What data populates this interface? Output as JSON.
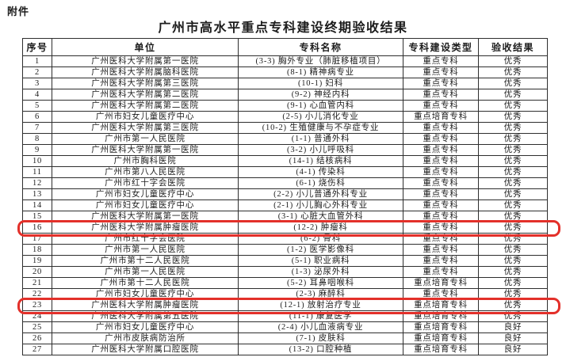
{
  "page": {
    "attachment_label": "附件",
    "title": "广州市高水平重点专科建设终期验收结果"
  },
  "table": {
    "headers": [
      "序号",
      "单位",
      "专科名称",
      "专科建设类型",
      "验收结果"
    ],
    "rows": [
      {
        "no": "1",
        "unit": "广州医科大学附属第一医院",
        "specialty": "(3-3) 胸外专业（肺脏移植项目）",
        "type": "重点专科",
        "result": "优秀",
        "highlighted": false
      },
      {
        "no": "2",
        "unit": "广州医科大学附属脑科医院",
        "specialty": "(8-1) 精神病专业",
        "type": "重点专科",
        "result": "优秀",
        "highlighted": false
      },
      {
        "no": "3",
        "unit": "广州医科大学附属第三医院",
        "specialty": "(10-1) 妇科",
        "type": "重点专科",
        "result": "优秀",
        "highlighted": false
      },
      {
        "no": "4",
        "unit": "广州医科大学附属第二医院",
        "specialty": "(9-2) 神经内科",
        "type": "重点专科",
        "result": "优秀",
        "highlighted": false
      },
      {
        "no": "5",
        "unit": "广州医科大学附属第二医院",
        "specialty": "(9-1) 心血管内科",
        "type": "重点专科",
        "result": "优秀",
        "highlighted": false
      },
      {
        "no": "6",
        "unit": "广州市妇女儿童医疗中心",
        "specialty": "(2-5) 小儿消化专业",
        "type": "重点培育专科",
        "result": "优秀",
        "highlighted": false
      },
      {
        "no": "7",
        "unit": "广州医科大学附属第三医院",
        "specialty": "(10-2) 生殖健康与不孕症专业",
        "type": "重点专科",
        "result": "优秀",
        "highlighted": false
      },
      {
        "no": "8",
        "unit": "广州市第一人民医院",
        "specialty": "(1-1) 普通外科",
        "type": "重点专科",
        "result": "优秀",
        "highlighted": false
      },
      {
        "no": "9",
        "unit": "广州医科大学附属第一医院",
        "specialty": "(3-2) 小儿呼吸科",
        "type": "重点专科",
        "result": "优秀",
        "highlighted": false
      },
      {
        "no": "10",
        "unit": "广州市胸科医院",
        "specialty": "(14-1) 结核病科",
        "type": "重点专科",
        "result": "优秀",
        "highlighted": false
      },
      {
        "no": "11",
        "unit": "广州市第八人民医院",
        "specialty": "(4-1) 传染科",
        "type": "重点专科",
        "result": "优秀",
        "highlighted": false
      },
      {
        "no": "12",
        "unit": "广州市红十字会医院",
        "specialty": "(6-1) 烧伤科",
        "type": "重点专科",
        "result": "优秀",
        "highlighted": false
      },
      {
        "no": "13",
        "unit": "广州市妇女儿童医疗中心",
        "specialty": "(2-2) 小儿普通外科专业",
        "type": "重点专科",
        "result": "优秀",
        "highlighted": false
      },
      {
        "no": "14",
        "unit": "广州市妇女儿童医疗中心",
        "specialty": "(2-1) 小儿胸心外科专业",
        "type": "重点专科",
        "result": "优秀",
        "highlighted": false
      },
      {
        "no": "15",
        "unit": "广州医科大学附属第一医院",
        "specialty": "(3-1) 心脏大血管外科",
        "type": "重点专科",
        "result": "优秀",
        "highlighted": false
      },
      {
        "no": "16",
        "unit": "广州医科大学附属肿瘤医院",
        "specialty": "(12-2) 肿瘤科",
        "type": "重点专科",
        "result": "优秀",
        "highlighted": true
      },
      {
        "no": "17",
        "unit": "广州市红十字会医院",
        "specialty": "(6-2) 骨科",
        "type": "重点专科",
        "result": "优秀",
        "highlighted": false
      },
      {
        "no": "18",
        "unit": "广州市第一人民医院",
        "specialty": "(1-2) 医学影像科",
        "type": "重点专科",
        "result": "优秀",
        "highlighted": false
      },
      {
        "no": "19",
        "unit": "广州市第十二人民医院",
        "specialty": "(5-1) 职业病科",
        "type": "重点专科",
        "result": "优秀",
        "highlighted": false
      },
      {
        "no": "20",
        "unit": "广州市第一人民医院",
        "specialty": "(1-3) 泌尿外科",
        "type": "重点专科",
        "result": "优秀",
        "highlighted": false
      },
      {
        "no": "21",
        "unit": "广州市第十二人民医院",
        "specialty": "(5-2) 耳鼻咽喉科",
        "type": "重点培育专科",
        "result": "优秀",
        "highlighted": false
      },
      {
        "no": "22",
        "unit": "广州市妇女儿童医疗中心",
        "specialty": "(2-3) 麻醉科",
        "type": "重点专科",
        "result": "优秀",
        "highlighted": false
      },
      {
        "no": "23",
        "unit": "广州医科大学附属肿瘤医院",
        "specialty": "(12-1) 放射治疗专业",
        "type": "重点培育专科",
        "result": "优秀",
        "highlighted": true
      },
      {
        "no": "24",
        "unit": "广州医科大学附属第五医院",
        "specialty": "(11-1) 康复医学",
        "type": "重点培育专科",
        "result": "优秀",
        "highlighted": false
      },
      {
        "no": "25",
        "unit": "广州市妇女儿童医疗中心",
        "specialty": "(2-4) 小儿血液病专业",
        "type": "重点培育专科",
        "result": "良好",
        "highlighted": false
      },
      {
        "no": "26",
        "unit": "广州市皮肤病防治所",
        "specialty": "(7-1) 皮肤科",
        "type": "重点培育专科",
        "result": "良好",
        "highlighted": false
      },
      {
        "no": "27",
        "unit": "广州医科大学附属口腔医院",
        "specialty": "(13-2) 口腔种植",
        "type": "重点培育专科",
        "result": "良好",
        "highlighted": false
      }
    ]
  },
  "colors": {
    "highlight_red": "#e3302a",
    "text": "#1c1c1c",
    "border": "#2e2e2e"
  }
}
